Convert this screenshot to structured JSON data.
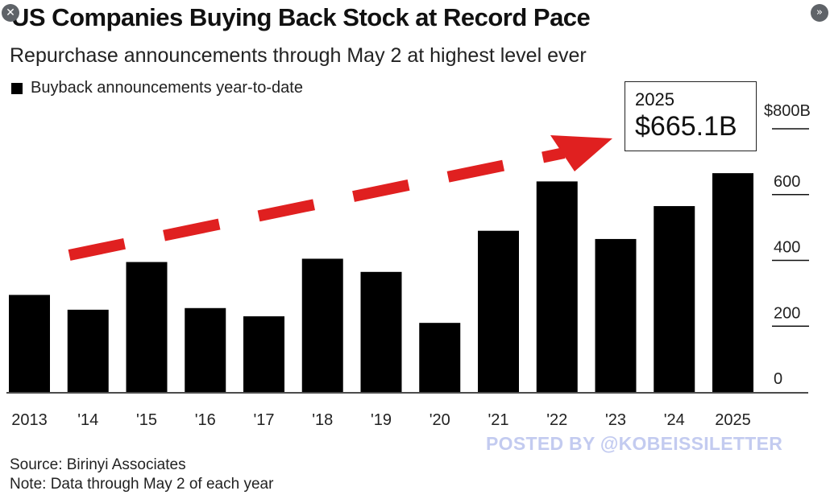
{
  "viewer": {
    "close_glyph": "✕",
    "next_glyph": "»"
  },
  "chart_data": {
    "type": "bar",
    "title": "US Companies Buying Back Stock at Record Pace",
    "subtitle": "Repurchase announcements through May 2 at highest level ever",
    "legend": [
      {
        "label": "Buyback announcements year-to-date",
        "color": "#000000"
      }
    ],
    "categories": [
      "2013",
      "'14",
      "'15",
      "'16",
      "'17",
      "'18",
      "'19",
      "'20",
      "'21",
      "'22",
      "'23",
      "'24",
      "2025"
    ],
    "values": [
      295,
      250,
      395,
      255,
      230,
      405,
      365,
      210,
      490,
      640,
      465,
      565,
      665.1
    ],
    "ylim": [
      0,
      800
    ],
    "yticks": [
      {
        "value": 0,
        "label": "0"
      },
      {
        "value": 200,
        "label": "200"
      },
      {
        "value": 400,
        "label": "400"
      },
      {
        "value": 600,
        "label": "600"
      },
      {
        "value": 800,
        "label": "$800B"
      }
    ],
    "y_axis_position": "right",
    "grid": false,
    "bar_color": "#000000",
    "annotation": {
      "year": "2025",
      "value_label": "$665.1B",
      "trend_arrow_color": "#e02020"
    },
    "source": "Source: Birinyi Associates",
    "note": "Note: Data through May 2 of each year"
  },
  "watermark": "POSTED BY @KOBEISSILETTER"
}
